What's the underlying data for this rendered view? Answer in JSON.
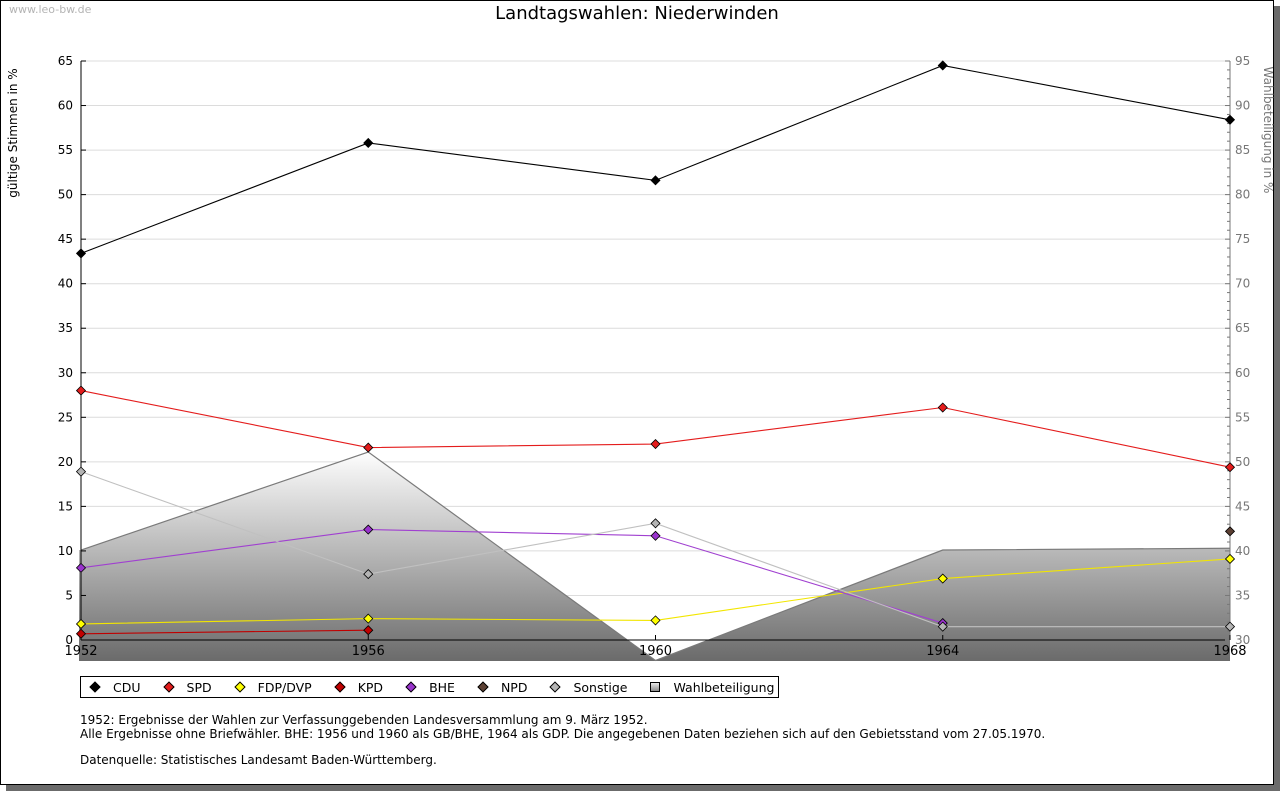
{
  "watermark": "www.leo-bw.de",
  "chart_data": {
    "type": "line",
    "title": "Landtagswahlen: Niederwinden",
    "ylabel": "gültige Stimmen in %",
    "y2label": "Wahlbeteiligung in %",
    "x": [
      "1952",
      "1956",
      "1960",
      "1964",
      "1968"
    ],
    "ylim": [
      0,
      65
    ],
    "y2lim": [
      30,
      95
    ],
    "yticks": [
      "0",
      "5",
      "10",
      "15",
      "20",
      "25",
      "30",
      "35",
      "40",
      "45",
      "50",
      "55",
      "60",
      "65"
    ],
    "y2ticks": [
      "30",
      "35",
      "40",
      "45",
      "50",
      "55",
      "60",
      "65",
      "70",
      "75",
      "80",
      "85",
      "90",
      "95"
    ],
    "grid": true,
    "legend_position": "bottom-left",
    "series": [
      {
        "name": "CDU",
        "color": "#000000",
        "values": [
          43.4,
          55.8,
          51.6,
          64.5,
          58.4
        ]
      },
      {
        "name": "SPD",
        "color": "#e41c1c",
        "values": [
          28.0,
          21.6,
          22.0,
          26.1,
          19.4
        ]
      },
      {
        "name": "FDP/DVP",
        "color": "#ffff00",
        "line_color": "#f2e600",
        "values": [
          1.8,
          2.4,
          2.2,
          6.9,
          9.1
        ]
      },
      {
        "name": "KPD",
        "color": "#c00000",
        "line_color": "#c00000",
        "values": [
          0.7,
          1.1,
          null,
          null,
          null
        ]
      },
      {
        "name": "BHE",
        "color": "#9933cc",
        "line_color": "#a040d0",
        "values": [
          8.1,
          12.4,
          11.7,
          1.9,
          null
        ]
      },
      {
        "name": "NPD",
        "color": "#5c4033",
        "values": [
          null,
          null,
          null,
          null,
          12.2
        ]
      },
      {
        "name": "Sonstige",
        "color": "#b4b4b4",
        "line_color": "#c0c0c0",
        "values": [
          18.9,
          7.4,
          13.1,
          1.5,
          1.5
        ]
      }
    ],
    "turnout": {
      "name": "Wahlbeteiligung",
      "axis": "right",
      "values": [
        40.1,
        51.1,
        27.7,
        40.1,
        40.3
      ]
    }
  },
  "notes": {
    "line1": "1952: Ergebnisse der Wahlen zur Verfassunggebenden Landesversammlung am 9. März 1952.",
    "line2": "Alle Ergebnisse ohne Briefwähler. BHE: 1956 und 1960 als GB/BHE, 1964 als GDP. Die angegebenen Daten beziehen sich auf den Gebietsstand vom 27.05.1970.",
    "source": "Datenquelle: Statistisches Landesamt Baden-Württemberg."
  }
}
